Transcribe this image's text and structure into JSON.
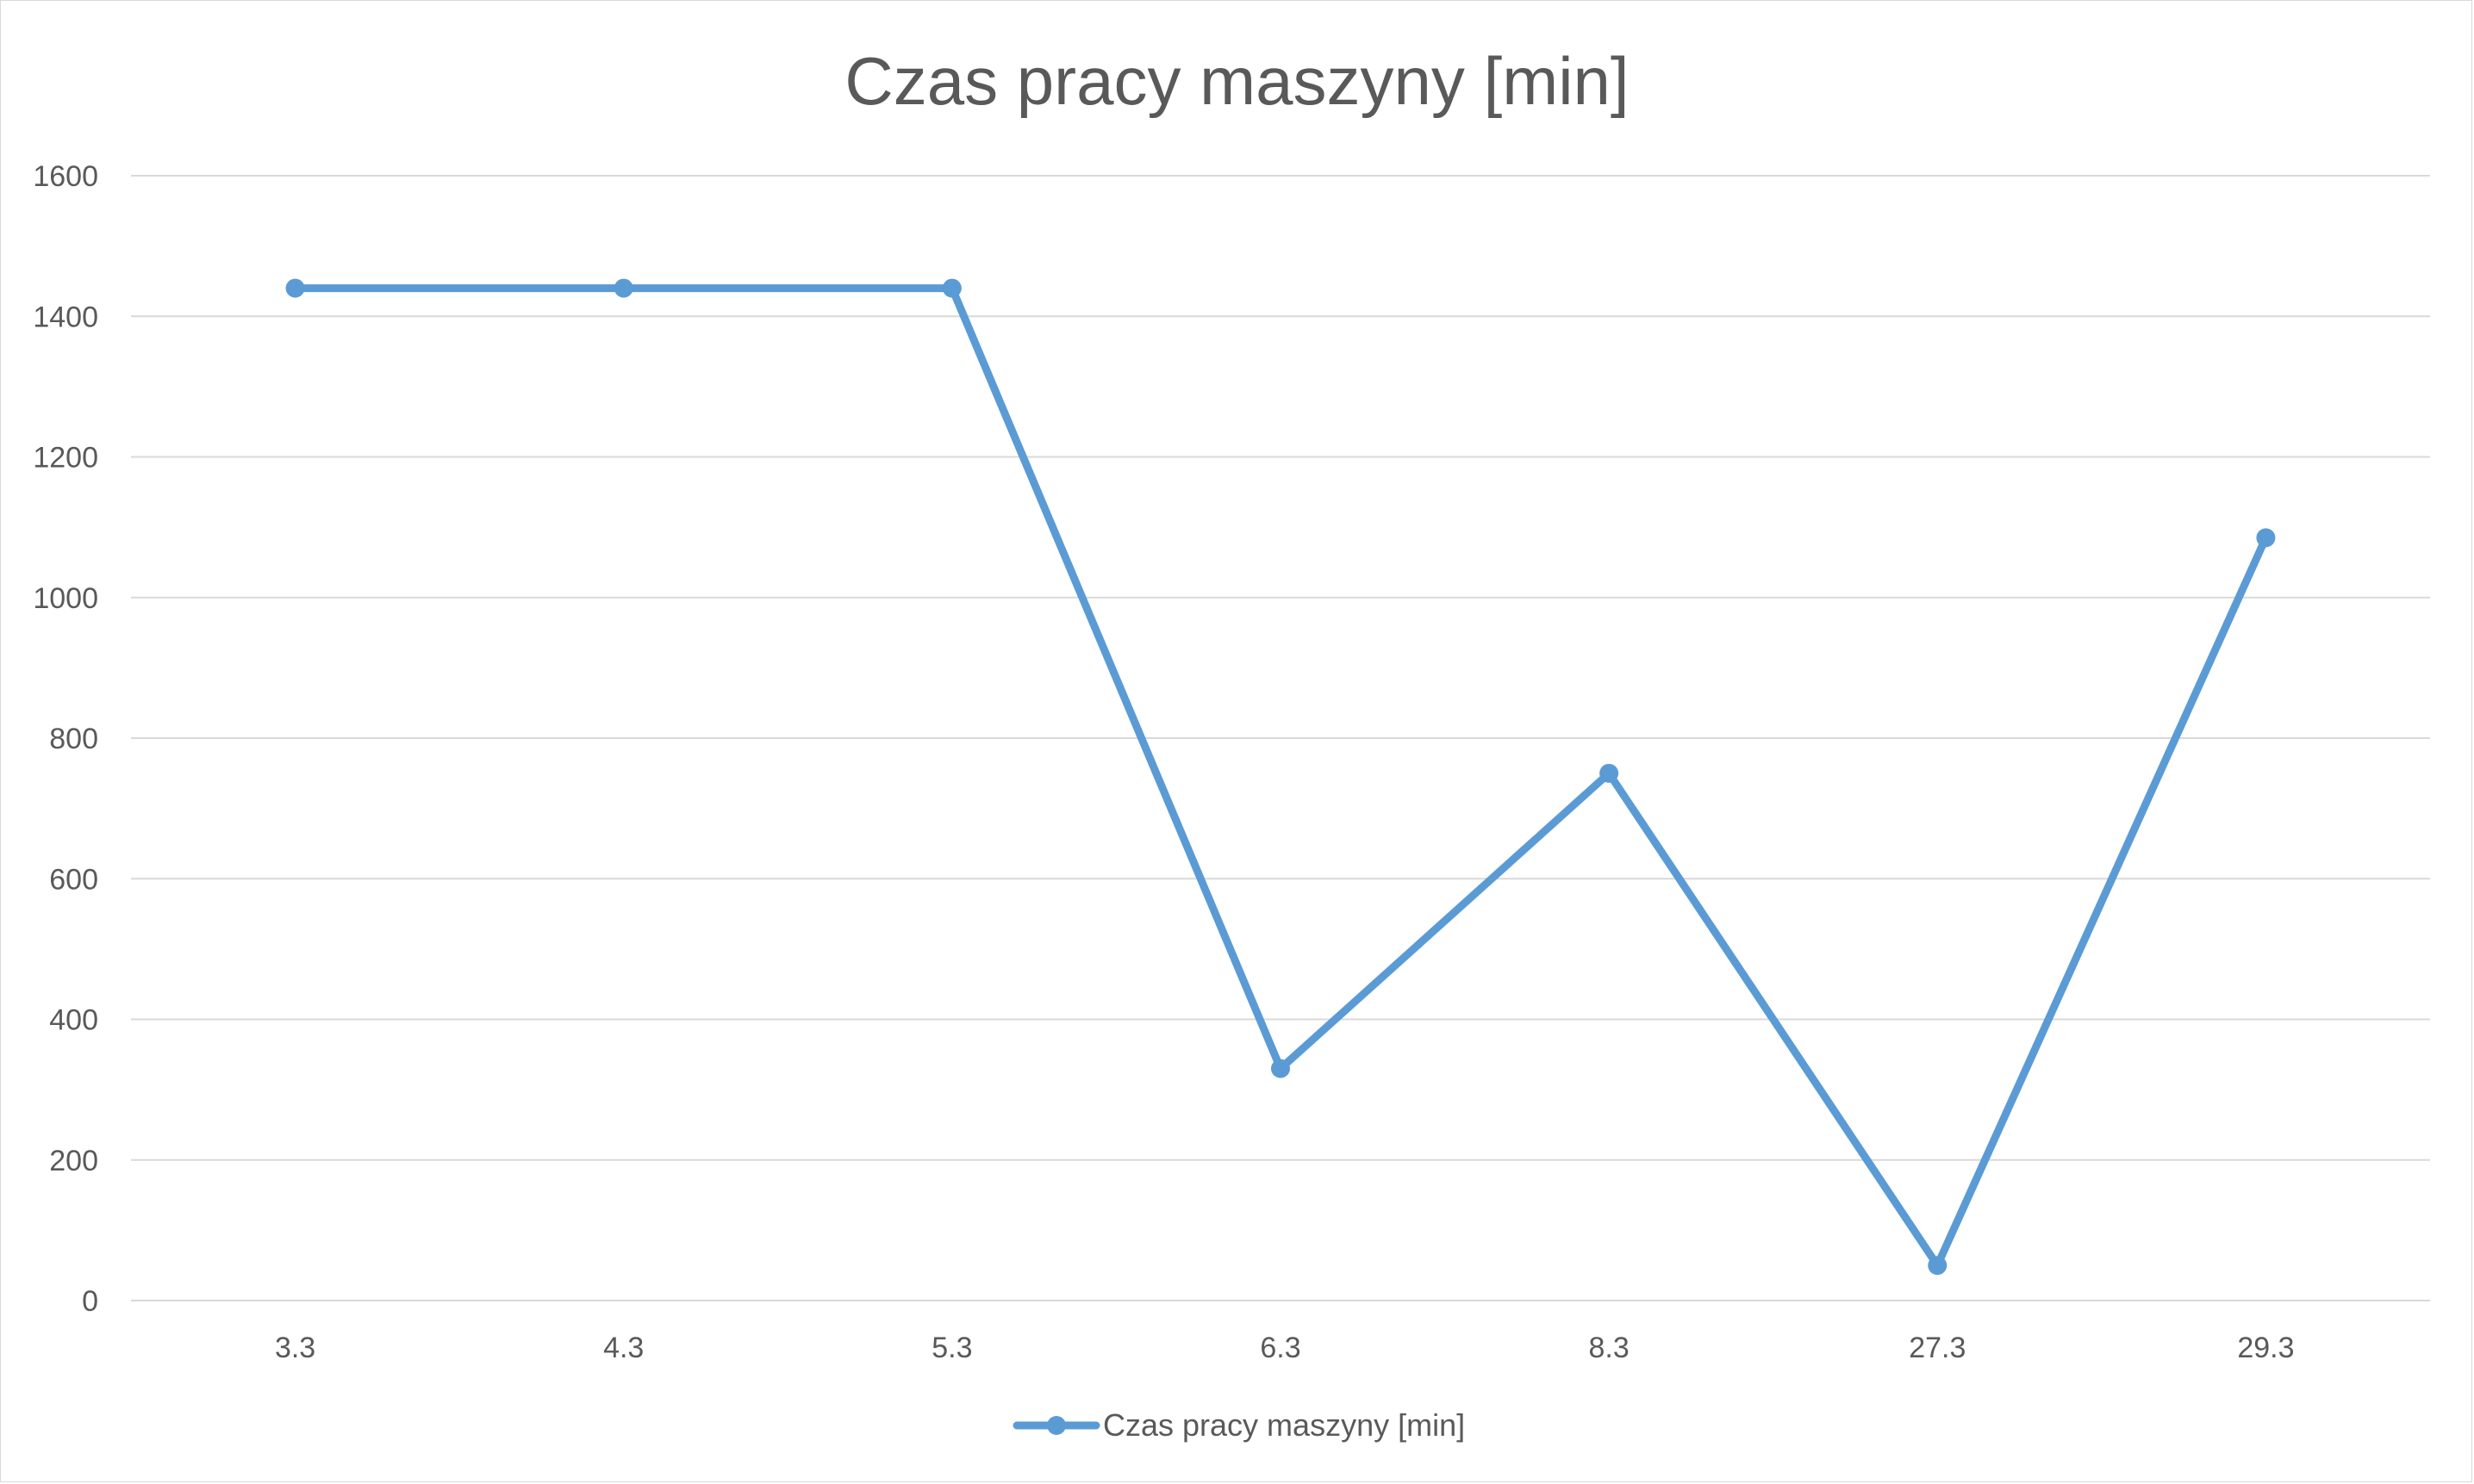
{
  "chart_data": {
    "type": "line",
    "title": "Czas pracy maszyny [min]",
    "xlabel": "",
    "ylabel": "",
    "categories": [
      "3.3",
      "4.3",
      "5.3",
      "6.3",
      "8.3",
      "27.3",
      "29.3"
    ],
    "series": [
      {
        "name": "Czas pracy maszyny [min]",
        "values": [
          1440,
          1440,
          1440,
          330,
          750,
          50,
          1085
        ],
        "color": "#5b9bd5"
      }
    ],
    "ylim": [
      0,
      1600
    ],
    "yticks": [
      "0",
      "200",
      "400",
      "600",
      "800",
      "1000",
      "1200",
      "1400",
      "1600"
    ],
    "grid": true,
    "legend_position": "bottom",
    "gridline_color": "#d9d9d9"
  }
}
